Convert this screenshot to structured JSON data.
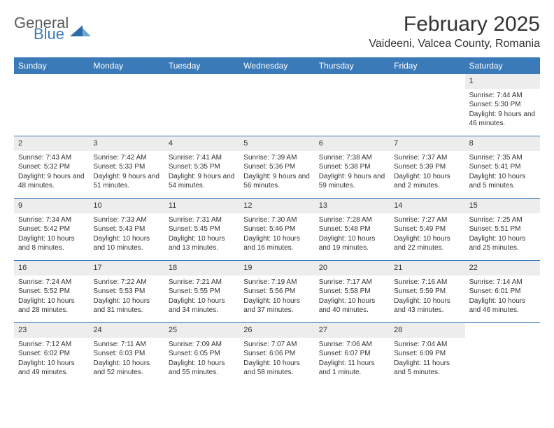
{
  "logo": {
    "general": "General",
    "blue": "Blue"
  },
  "title": "February 2025",
  "location": "Vaideeni, Valcea County, Romania",
  "colors": {
    "header_bg": "#3a7ab8",
    "header_text": "#ffffff",
    "daynum_bg": "#ededed",
    "border": "#3a7ab8",
    "text": "#333333"
  },
  "day_headers": [
    "Sunday",
    "Monday",
    "Tuesday",
    "Wednesday",
    "Thursday",
    "Friday",
    "Saturday"
  ],
  "weeks": [
    [
      {
        "n": "",
        "lines": []
      },
      {
        "n": "",
        "lines": []
      },
      {
        "n": "",
        "lines": []
      },
      {
        "n": "",
        "lines": []
      },
      {
        "n": "",
        "lines": []
      },
      {
        "n": "",
        "lines": []
      },
      {
        "n": "1",
        "lines": [
          "Sunrise: 7:44 AM",
          "Sunset: 5:30 PM",
          "Daylight: 9 hours and 46 minutes."
        ]
      }
    ],
    [
      {
        "n": "2",
        "lines": [
          "Sunrise: 7:43 AM",
          "Sunset: 5:32 PM",
          "Daylight: 9 hours and 48 minutes."
        ]
      },
      {
        "n": "3",
        "lines": [
          "Sunrise: 7:42 AM",
          "Sunset: 5:33 PM",
          "Daylight: 9 hours and 51 minutes."
        ]
      },
      {
        "n": "4",
        "lines": [
          "Sunrise: 7:41 AM",
          "Sunset: 5:35 PM",
          "Daylight: 9 hours and 54 minutes."
        ]
      },
      {
        "n": "5",
        "lines": [
          "Sunrise: 7:39 AM",
          "Sunset: 5:36 PM",
          "Daylight: 9 hours and 56 minutes."
        ]
      },
      {
        "n": "6",
        "lines": [
          "Sunrise: 7:38 AM",
          "Sunset: 5:38 PM",
          "Daylight: 9 hours and 59 minutes."
        ]
      },
      {
        "n": "7",
        "lines": [
          "Sunrise: 7:37 AM",
          "Sunset: 5:39 PM",
          "Daylight: 10 hours and 2 minutes."
        ]
      },
      {
        "n": "8",
        "lines": [
          "Sunrise: 7:35 AM",
          "Sunset: 5:41 PM",
          "Daylight: 10 hours and 5 minutes."
        ]
      }
    ],
    [
      {
        "n": "9",
        "lines": [
          "Sunrise: 7:34 AM",
          "Sunset: 5:42 PM",
          "Daylight: 10 hours and 8 minutes."
        ]
      },
      {
        "n": "10",
        "lines": [
          "Sunrise: 7:33 AM",
          "Sunset: 5:43 PM",
          "Daylight: 10 hours and 10 minutes."
        ]
      },
      {
        "n": "11",
        "lines": [
          "Sunrise: 7:31 AM",
          "Sunset: 5:45 PM",
          "Daylight: 10 hours and 13 minutes."
        ]
      },
      {
        "n": "12",
        "lines": [
          "Sunrise: 7:30 AM",
          "Sunset: 5:46 PM",
          "Daylight: 10 hours and 16 minutes."
        ]
      },
      {
        "n": "13",
        "lines": [
          "Sunrise: 7:28 AM",
          "Sunset: 5:48 PM",
          "Daylight: 10 hours and 19 minutes."
        ]
      },
      {
        "n": "14",
        "lines": [
          "Sunrise: 7:27 AM",
          "Sunset: 5:49 PM",
          "Daylight: 10 hours and 22 minutes."
        ]
      },
      {
        "n": "15",
        "lines": [
          "Sunrise: 7:25 AM",
          "Sunset: 5:51 PM",
          "Daylight: 10 hours and 25 minutes."
        ]
      }
    ],
    [
      {
        "n": "16",
        "lines": [
          "Sunrise: 7:24 AM",
          "Sunset: 5:52 PM",
          "Daylight: 10 hours and 28 minutes."
        ]
      },
      {
        "n": "17",
        "lines": [
          "Sunrise: 7:22 AM",
          "Sunset: 5:53 PM",
          "Daylight: 10 hours and 31 minutes."
        ]
      },
      {
        "n": "18",
        "lines": [
          "Sunrise: 7:21 AM",
          "Sunset: 5:55 PM",
          "Daylight: 10 hours and 34 minutes."
        ]
      },
      {
        "n": "19",
        "lines": [
          "Sunrise: 7:19 AM",
          "Sunset: 5:56 PM",
          "Daylight: 10 hours and 37 minutes."
        ]
      },
      {
        "n": "20",
        "lines": [
          "Sunrise: 7:17 AM",
          "Sunset: 5:58 PM",
          "Daylight: 10 hours and 40 minutes."
        ]
      },
      {
        "n": "21",
        "lines": [
          "Sunrise: 7:16 AM",
          "Sunset: 5:59 PM",
          "Daylight: 10 hours and 43 minutes."
        ]
      },
      {
        "n": "22",
        "lines": [
          "Sunrise: 7:14 AM",
          "Sunset: 6:01 PM",
          "Daylight: 10 hours and 46 minutes."
        ]
      }
    ],
    [
      {
        "n": "23",
        "lines": [
          "Sunrise: 7:12 AM",
          "Sunset: 6:02 PM",
          "Daylight: 10 hours and 49 minutes."
        ]
      },
      {
        "n": "24",
        "lines": [
          "Sunrise: 7:11 AM",
          "Sunset: 6:03 PM",
          "Daylight: 10 hours and 52 minutes."
        ]
      },
      {
        "n": "25",
        "lines": [
          "Sunrise: 7:09 AM",
          "Sunset: 6:05 PM",
          "Daylight: 10 hours and 55 minutes."
        ]
      },
      {
        "n": "26",
        "lines": [
          "Sunrise: 7:07 AM",
          "Sunset: 6:06 PM",
          "Daylight: 10 hours and 58 minutes."
        ]
      },
      {
        "n": "27",
        "lines": [
          "Sunrise: 7:06 AM",
          "Sunset: 6:07 PM",
          "Daylight: 11 hours and 1 minute."
        ]
      },
      {
        "n": "28",
        "lines": [
          "Sunrise: 7:04 AM",
          "Sunset: 6:09 PM",
          "Daylight: 11 hours and 5 minutes."
        ]
      },
      {
        "n": "",
        "lines": []
      }
    ]
  ]
}
